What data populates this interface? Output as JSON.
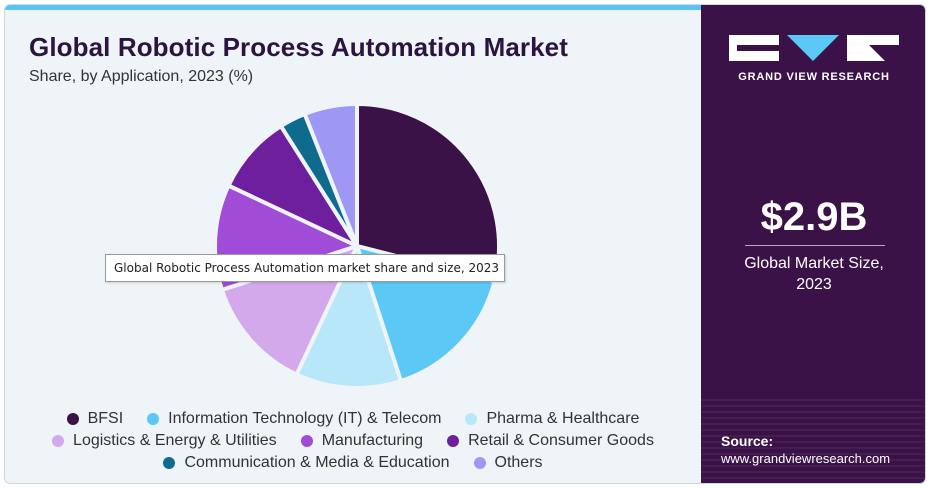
{
  "header": {
    "title": "Global Robotic Process Automation Market",
    "subtitle": "Share, by Application, 2023 (%)"
  },
  "tooltip": {
    "text": "Global Robotic Process Automation market share and size, 2023"
  },
  "sidebar": {
    "brand": "GRAND VIEW RESEARCH",
    "market_value": "$2.9B",
    "market_label_line1": "Global Market Size,",
    "market_label_line2": "2023",
    "source_label": "Source:",
    "source_url": "www.grandviewresearch.com"
  },
  "chart_data": {
    "type": "pie",
    "title": "Global Robotic Process Automation Market",
    "subtitle": "Share, by Application, 2023 (%)",
    "legend_position": "bottom",
    "slices": [
      {
        "label": "BFSI",
        "value": 29,
        "color": "#3b1248"
      },
      {
        "label": "Information Technology (IT) & Telecom",
        "value": 16,
        "color": "#5cc8f5"
      },
      {
        "label": "Pharma & Healthcare",
        "value": 12,
        "color": "#b9e7fa"
      },
      {
        "label": "Logistics & Energy & Utilities",
        "value": 13,
        "color": "#d3a9ec"
      },
      {
        "label": "Manufacturing",
        "value": 12,
        "color": "#a04cd6"
      },
      {
        "label": "Retail & Consumer Goods",
        "value": 9,
        "color": "#6e1f9e"
      },
      {
        "label": "Communication & Media & Education",
        "value": 3,
        "color": "#0f6b8e"
      },
      {
        "label": "Others",
        "value": 6,
        "color": "#9e98f5"
      }
    ]
  }
}
